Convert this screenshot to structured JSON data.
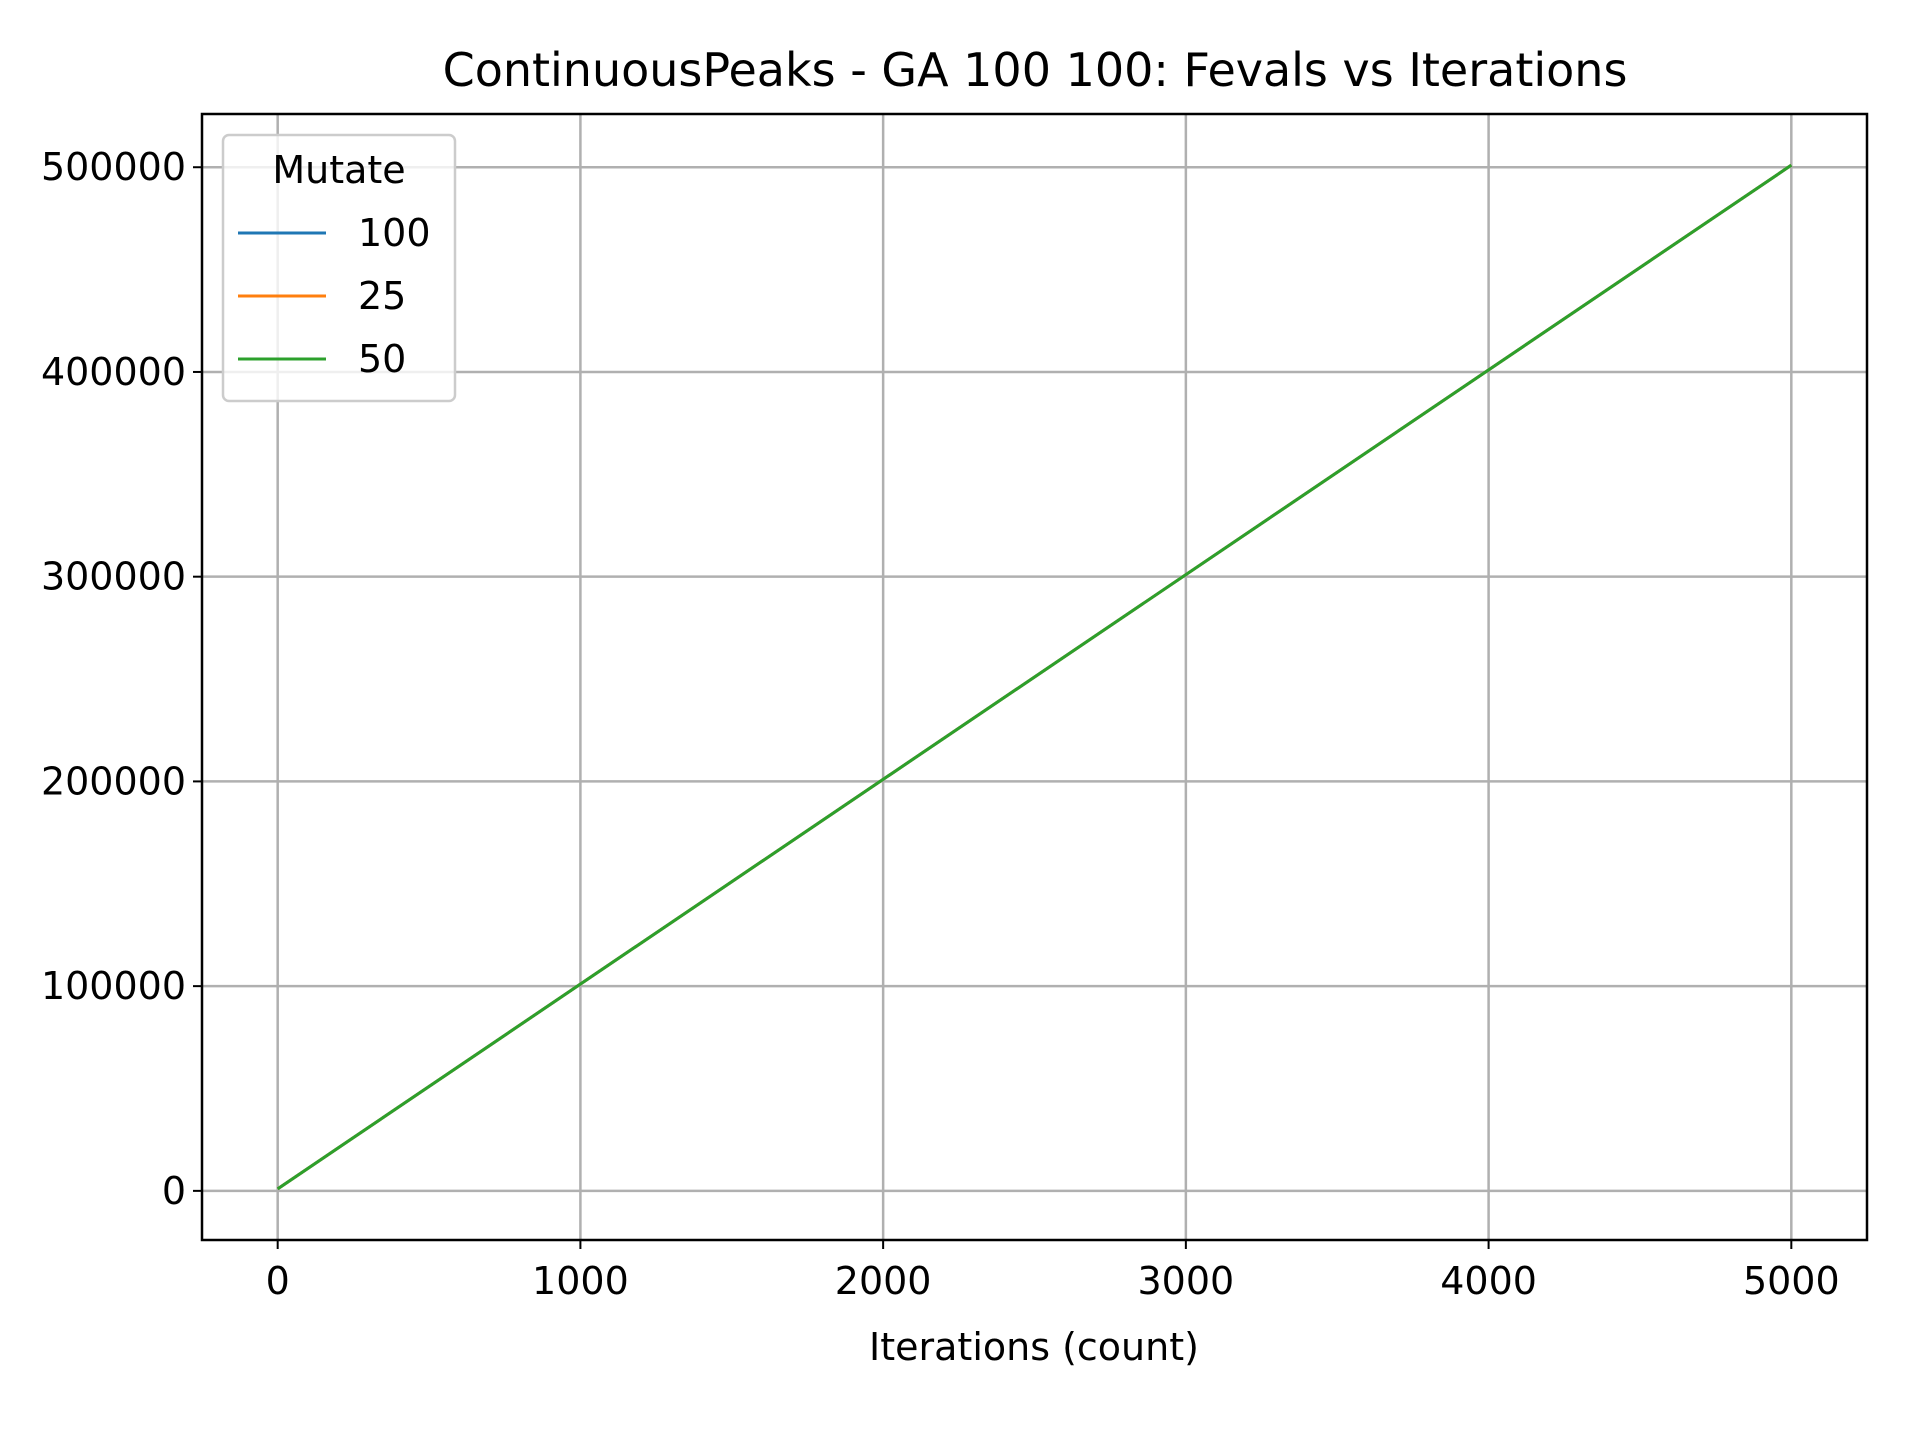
{
  "chart_data": {
    "type": "line",
    "title": "ContinuousPeaks - GA 100 100: Fevals vs Iterations",
    "xlabel": "Iterations (count)",
    "ylabel": "",
    "xlim": [
      -250,
      5250
    ],
    "ylim": [
      -24000,
      526000
    ],
    "xticks": [
      0,
      1000,
      2000,
      3000,
      4000,
      5000
    ],
    "yticks": [
      0,
      100000,
      200000,
      300000,
      400000,
      500000
    ],
    "grid": true,
    "legend": {
      "title": "Mutate",
      "placement": "top-left"
    },
    "series": [
      {
        "name": "100",
        "color": "#1f77b4",
        "x": [
          0,
          5000
        ],
        "y": [
          1000,
          501000
        ]
      },
      {
        "name": "25",
        "color": "#ff7f0e",
        "x": [
          0,
          5000
        ],
        "y": [
          1000,
          501000
        ]
      },
      {
        "name": "50",
        "color": "#2ca02c",
        "x": [
          0,
          5000
        ],
        "y": [
          1000,
          501000
        ]
      }
    ]
  }
}
